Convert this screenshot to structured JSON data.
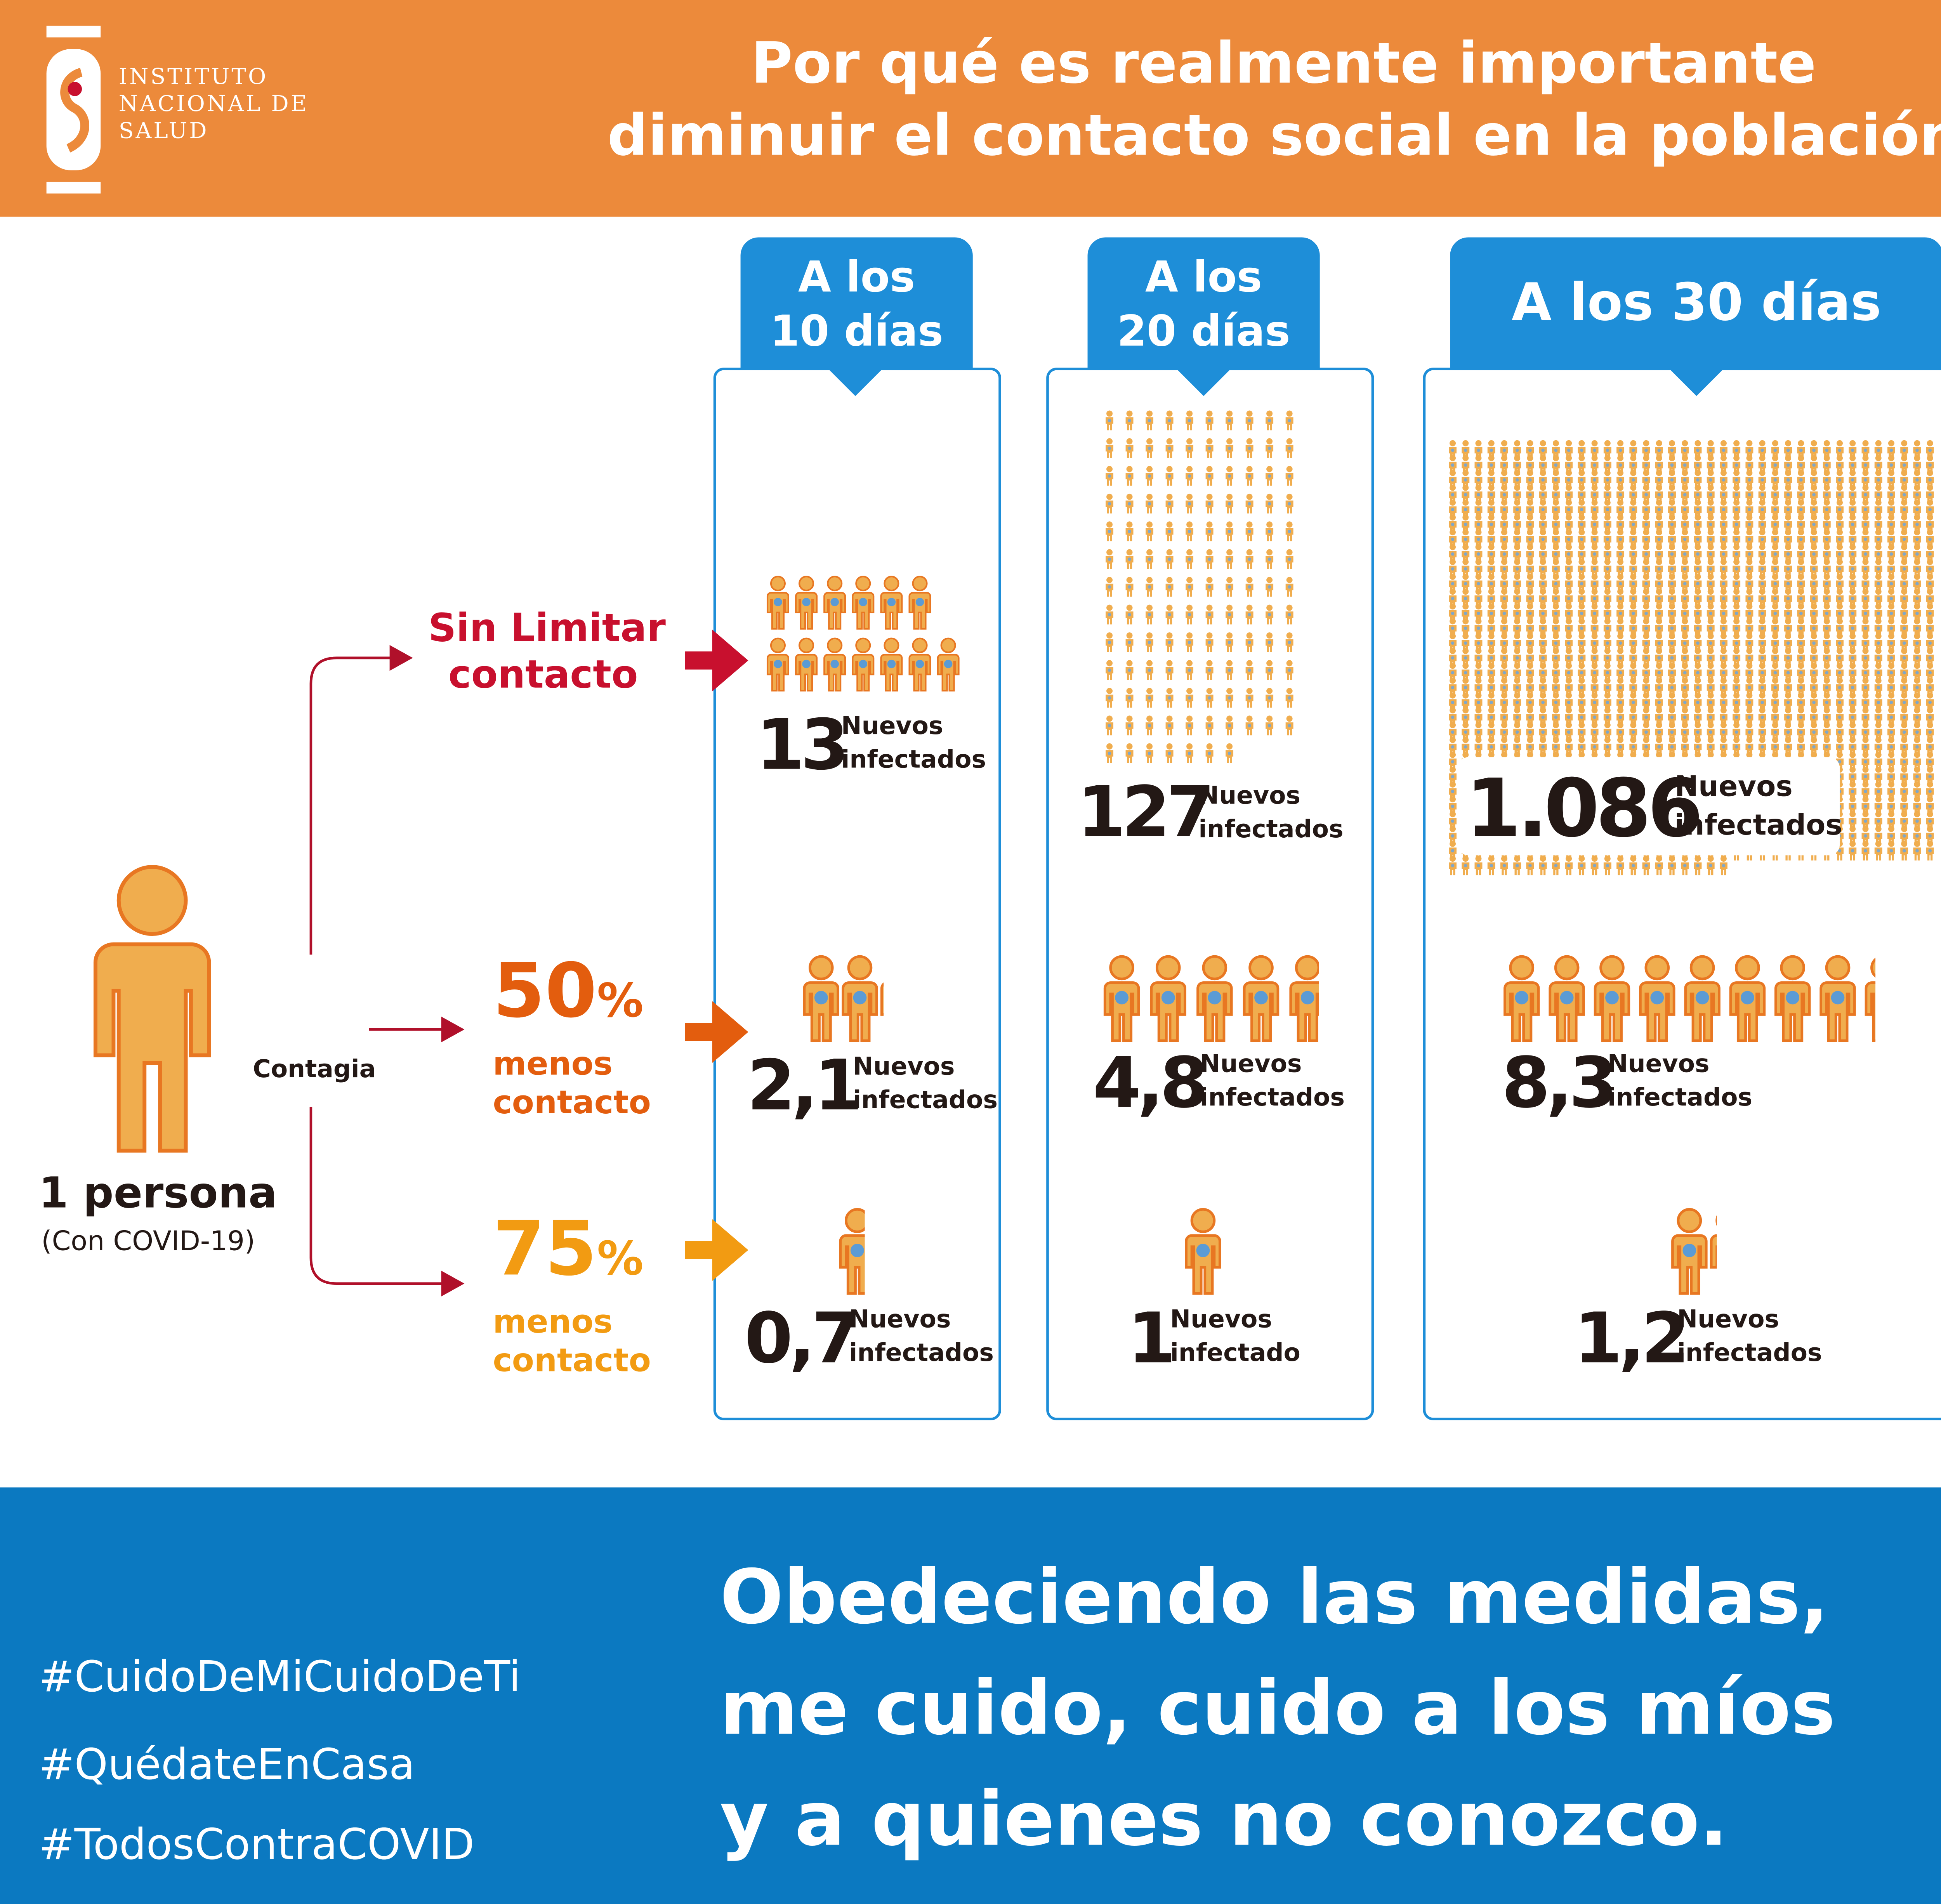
{
  "header": {
    "logo_lines": [
      "INSTITUTO",
      "NACIONAL DE",
      "SALUD"
    ],
    "title_line1": "Por qué es realmente importante",
    "title_line2": "diminuir el contacto social en la población"
  },
  "columns": [
    {
      "line1": "A los",
      "line2": "10 días"
    },
    {
      "line1": "A los",
      "line2": "20 días"
    },
    {
      "line1": "A los 30 días"
    }
  ],
  "source": {
    "label": "1 persona",
    "sublabel": "(Con COVID-19)",
    "virus_label": "Contagia"
  },
  "scenarios": [
    {
      "line1": "Sin Limitar",
      "line2": "contacto",
      "color": "#c8102e"
    },
    {
      "pct": "50",
      "pct_symbol": "%",
      "line1": "menos",
      "line2": "contacto",
      "color": "#e35d0e"
    },
    {
      "pct": "75",
      "pct_symbol": "%",
      "line1": "menos",
      "line2": "contacto",
      "color": "#f29b12"
    }
  ],
  "values": {
    "sin_limitar": [
      {
        "value": "13",
        "count": 13,
        "l1": "Nuevos",
        "l2": "infectados"
      },
      {
        "value": "127",
        "count": 127,
        "l1": "Nuevos",
        "l2": "infectados"
      },
      {
        "value": "1.086",
        "count": 1086,
        "l1": "Nuevos",
        "l2": "infectados"
      }
    ],
    "menos_50": [
      {
        "value": "2,1",
        "count": 2.1,
        "l1": "Nuevos",
        "l2": "infectados"
      },
      {
        "value": "4,8",
        "count": 4.8,
        "l1": "Nuevos",
        "l2": "infectados"
      },
      {
        "value": "8,3",
        "count": 8.3,
        "l1": "Nuevos",
        "l2": "infectados"
      }
    ],
    "menos_75": [
      {
        "value": "0,7",
        "count": 0.7,
        "l1": "Nuevos",
        "l2": "infectados"
      },
      {
        "value": "1",
        "count": 1,
        "l1": "Nuevos",
        "l2": "infectado"
      },
      {
        "value": "1,2",
        "count": 1.2,
        "l1": "Nuevos",
        "l2": "infectados"
      }
    ]
  },
  "colors": {
    "header": "#ec8a3b",
    "footer": "#0b79c1",
    "tab": "#1e8ed8",
    "person": "#f0ad4e",
    "person_outline": "#e87722",
    "virus": "#5b9bd5",
    "text_dark": "#231815"
  },
  "footer": {
    "hashtags": [
      "#CuidoDeMiCuidoDeTi",
      "#QuédateEnCasa",
      "#TodosContraCOVID"
    ],
    "slogan_lines": [
      "Obedeciendo las medidas,",
      "me cuido, cuido a los míos",
      "y a quienes no conozco."
    ]
  }
}
